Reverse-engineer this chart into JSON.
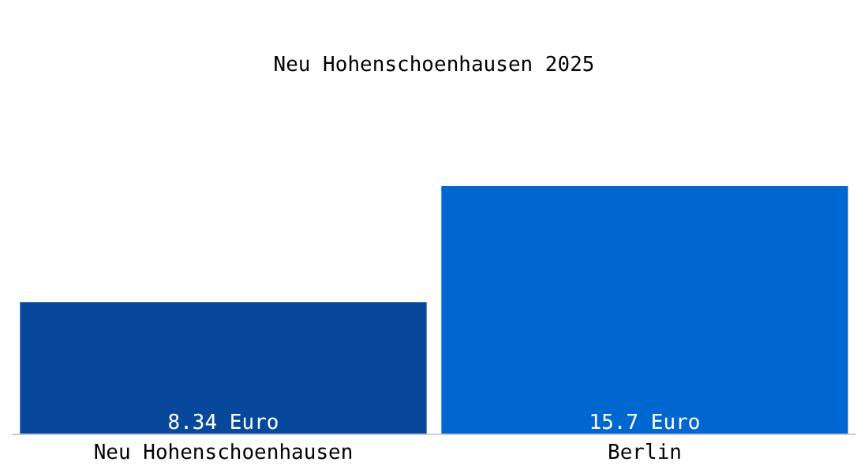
{
  "chart_data": {
    "type": "bar",
    "title": "Neu Hohenschoenhausen 2025",
    "categories": [
      "Neu Hohenschoenhausen",
      "Berlin"
    ],
    "values": [
      8.34,
      15.7
    ],
    "colors": [
      "#08489c",
      "#0066d0"
    ],
    "value_labels": [
      "8.34 Euro",
      "15.7 Euro"
    ]
  }
}
